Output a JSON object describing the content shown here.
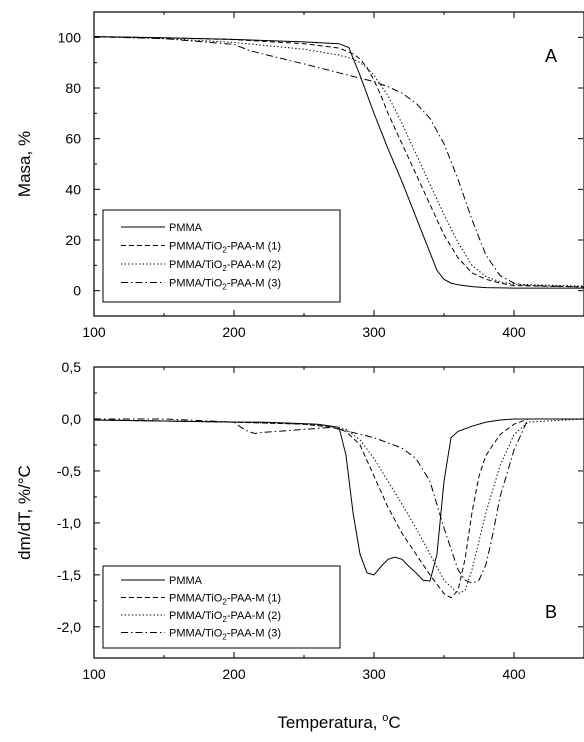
{
  "chart_data": [
    {
      "type": "line",
      "panel_label": "A",
      "xlabel": "Temperatura, °C",
      "ylabel": "Masa, %",
      "xlim": [
        100,
        450
      ],
      "ylim": [
        -10,
        110
      ],
      "xticks": [
        "100",
        "200",
        "300",
        "400"
      ],
      "yticks": [
        "0",
        "20",
        "40",
        "60",
        "80",
        "100"
      ],
      "legend_position": "bottom-left",
      "series": [
        {
          "name": "PMMA",
          "style": "solid",
          "x": [
            100,
            150,
            200,
            250,
            275,
            282,
            290,
            300,
            310,
            320,
            330,
            340,
            345,
            350,
            355,
            360,
            370,
            380,
            400,
            450
          ],
          "y": [
            100.3,
            99.8,
            99.2,
            98.2,
            97.5,
            96,
            85,
            70,
            56,
            43,
            29,
            15,
            8,
            4.5,
            3,
            2.3,
            1.6,
            1.2,
            1,
            1
          ]
        },
        {
          "name": "PMMA/TiO2-PAA-M (1)",
          "style": "dashed",
          "x": [
            100,
            150,
            200,
            250,
            275,
            285,
            290,
            295,
            300,
            305,
            310,
            320,
            330,
            340,
            350,
            360,
            370,
            380,
            390,
            400,
            450
          ],
          "y": [
            100.3,
            99.8,
            99.1,
            97.5,
            95.8,
            93.5,
            91.5,
            88,
            83,
            77,
            70,
            58,
            46,
            34,
            22,
            13,
            7,
            4.5,
            3,
            2,
            1.5
          ]
        },
        {
          "name": "PMMA/TiO2-PAA-M (2)",
          "style": "dotted",
          "x": [
            100,
            150,
            200,
            250,
            275,
            285,
            290,
            295,
            300,
            310,
            320,
            330,
            340,
            350,
            360,
            370,
            380,
            390,
            400,
            450
          ],
          "y": [
            100.3,
            99.5,
            98,
            95.3,
            93,
            91.5,
            90,
            88,
            85,
            77,
            66,
            54,
            42,
            30,
            19,
            10,
            5.5,
            3.5,
            2.5,
            1.8
          ]
        },
        {
          "name": "PMMA/TiO2-PAA-M (3)",
          "style": "dashdot",
          "x": [
            100,
            150,
            200,
            210,
            220,
            250,
            275,
            300,
            310,
            320,
            330,
            340,
            350,
            360,
            370,
            380,
            390,
            400,
            410,
            450
          ],
          "y": [
            100.2,
            99.5,
            97.2,
            95,
            93.5,
            89.5,
            86,
            82.5,
            80.5,
            78,
            74,
            68,
            58,
            44,
            28,
            14,
            6,
            3,
            2,
            1.5
          ]
        }
      ]
    },
    {
      "type": "line",
      "panel_label": "B",
      "xlabel": "Temperatura, °C",
      "ylabel": "dm/dT, %/°C",
      "xlim": [
        100,
        450
      ],
      "ylim": [
        -2.3,
        0.5
      ],
      "xticks": [
        "100",
        "200",
        "300",
        "400"
      ],
      "yticks": [
        "0,5",
        "0,0",
        "-0,5",
        "-1,0",
        "-1,5",
        "-2,0"
      ],
      "legend_position": "bottom-left",
      "series": [
        {
          "name": "PMMA",
          "style": "solid",
          "x": [
            100,
            150,
            200,
            220,
            240,
            260,
            275,
            280,
            285,
            290,
            295,
            300,
            305,
            310,
            315,
            320,
            325,
            330,
            335,
            340,
            345,
            350,
            355,
            360,
            370,
            380,
            390,
            400,
            450
          ],
          "y": [
            -0.01,
            -0.02,
            -0.03,
            -0.03,
            -0.04,
            -0.05,
            -0.08,
            -0.35,
            -0.9,
            -1.3,
            -1.48,
            -1.5,
            -1.42,
            -1.35,
            -1.33,
            -1.35,
            -1.42,
            -1.48,
            -1.55,
            -1.56,
            -1.3,
            -0.6,
            -0.18,
            -0.12,
            -0.07,
            -0.03,
            -0.01,
            0,
            0
          ]
        },
        {
          "name": "PMMA/TiO2-PAA-M (1)",
          "style": "dashed",
          "x": [
            100,
            150,
            200,
            250,
            270,
            280,
            290,
            300,
            310,
            320,
            330,
            340,
            350,
            355,
            360,
            365,
            370,
            375,
            380,
            390,
            400,
            410,
            450
          ],
          "y": [
            -0.01,
            -0.02,
            -0.03,
            -0.05,
            -0.08,
            -0.12,
            -0.25,
            -0.55,
            -0.85,
            -1.1,
            -1.3,
            -1.5,
            -1.68,
            -1.72,
            -1.65,
            -1.35,
            -0.9,
            -0.55,
            -0.35,
            -0.15,
            -0.05,
            0,
            0
          ]
        },
        {
          "name": "PMMA/TiO2-PAA-M (2)",
          "style": "dotted",
          "x": [
            100,
            150,
            200,
            250,
            270,
            280,
            290,
            300,
            310,
            320,
            330,
            340,
            350,
            360,
            365,
            370,
            380,
            390,
            400,
            410,
            450
          ],
          "y": [
            -0.01,
            -0.02,
            -0.03,
            -0.05,
            -0.07,
            -0.1,
            -0.2,
            -0.38,
            -0.6,
            -0.82,
            -1.05,
            -1.3,
            -1.55,
            -1.68,
            -1.65,
            -1.45,
            -0.9,
            -0.45,
            -0.15,
            -0.03,
            0
          ]
        },
        {
          "name": "PMMA/TiO2-PAA-M (3)",
          "style": "dashdot",
          "x": [
            100,
            150,
            200,
            205,
            210,
            215,
            220,
            250,
            270,
            300,
            320,
            330,
            340,
            350,
            360,
            365,
            370,
            375,
            380,
            385,
            390,
            400,
            410,
            450
          ],
          "y": [
            0,
            0,
            -0.03,
            -0.08,
            -0.12,
            -0.14,
            -0.13,
            -0.1,
            -0.08,
            -0.18,
            -0.28,
            -0.38,
            -0.6,
            -1.05,
            -1.45,
            -1.55,
            -1.58,
            -1.55,
            -1.4,
            -1.1,
            -0.75,
            -0.3,
            0,
            0
          ]
        }
      ]
    }
  ]
}
